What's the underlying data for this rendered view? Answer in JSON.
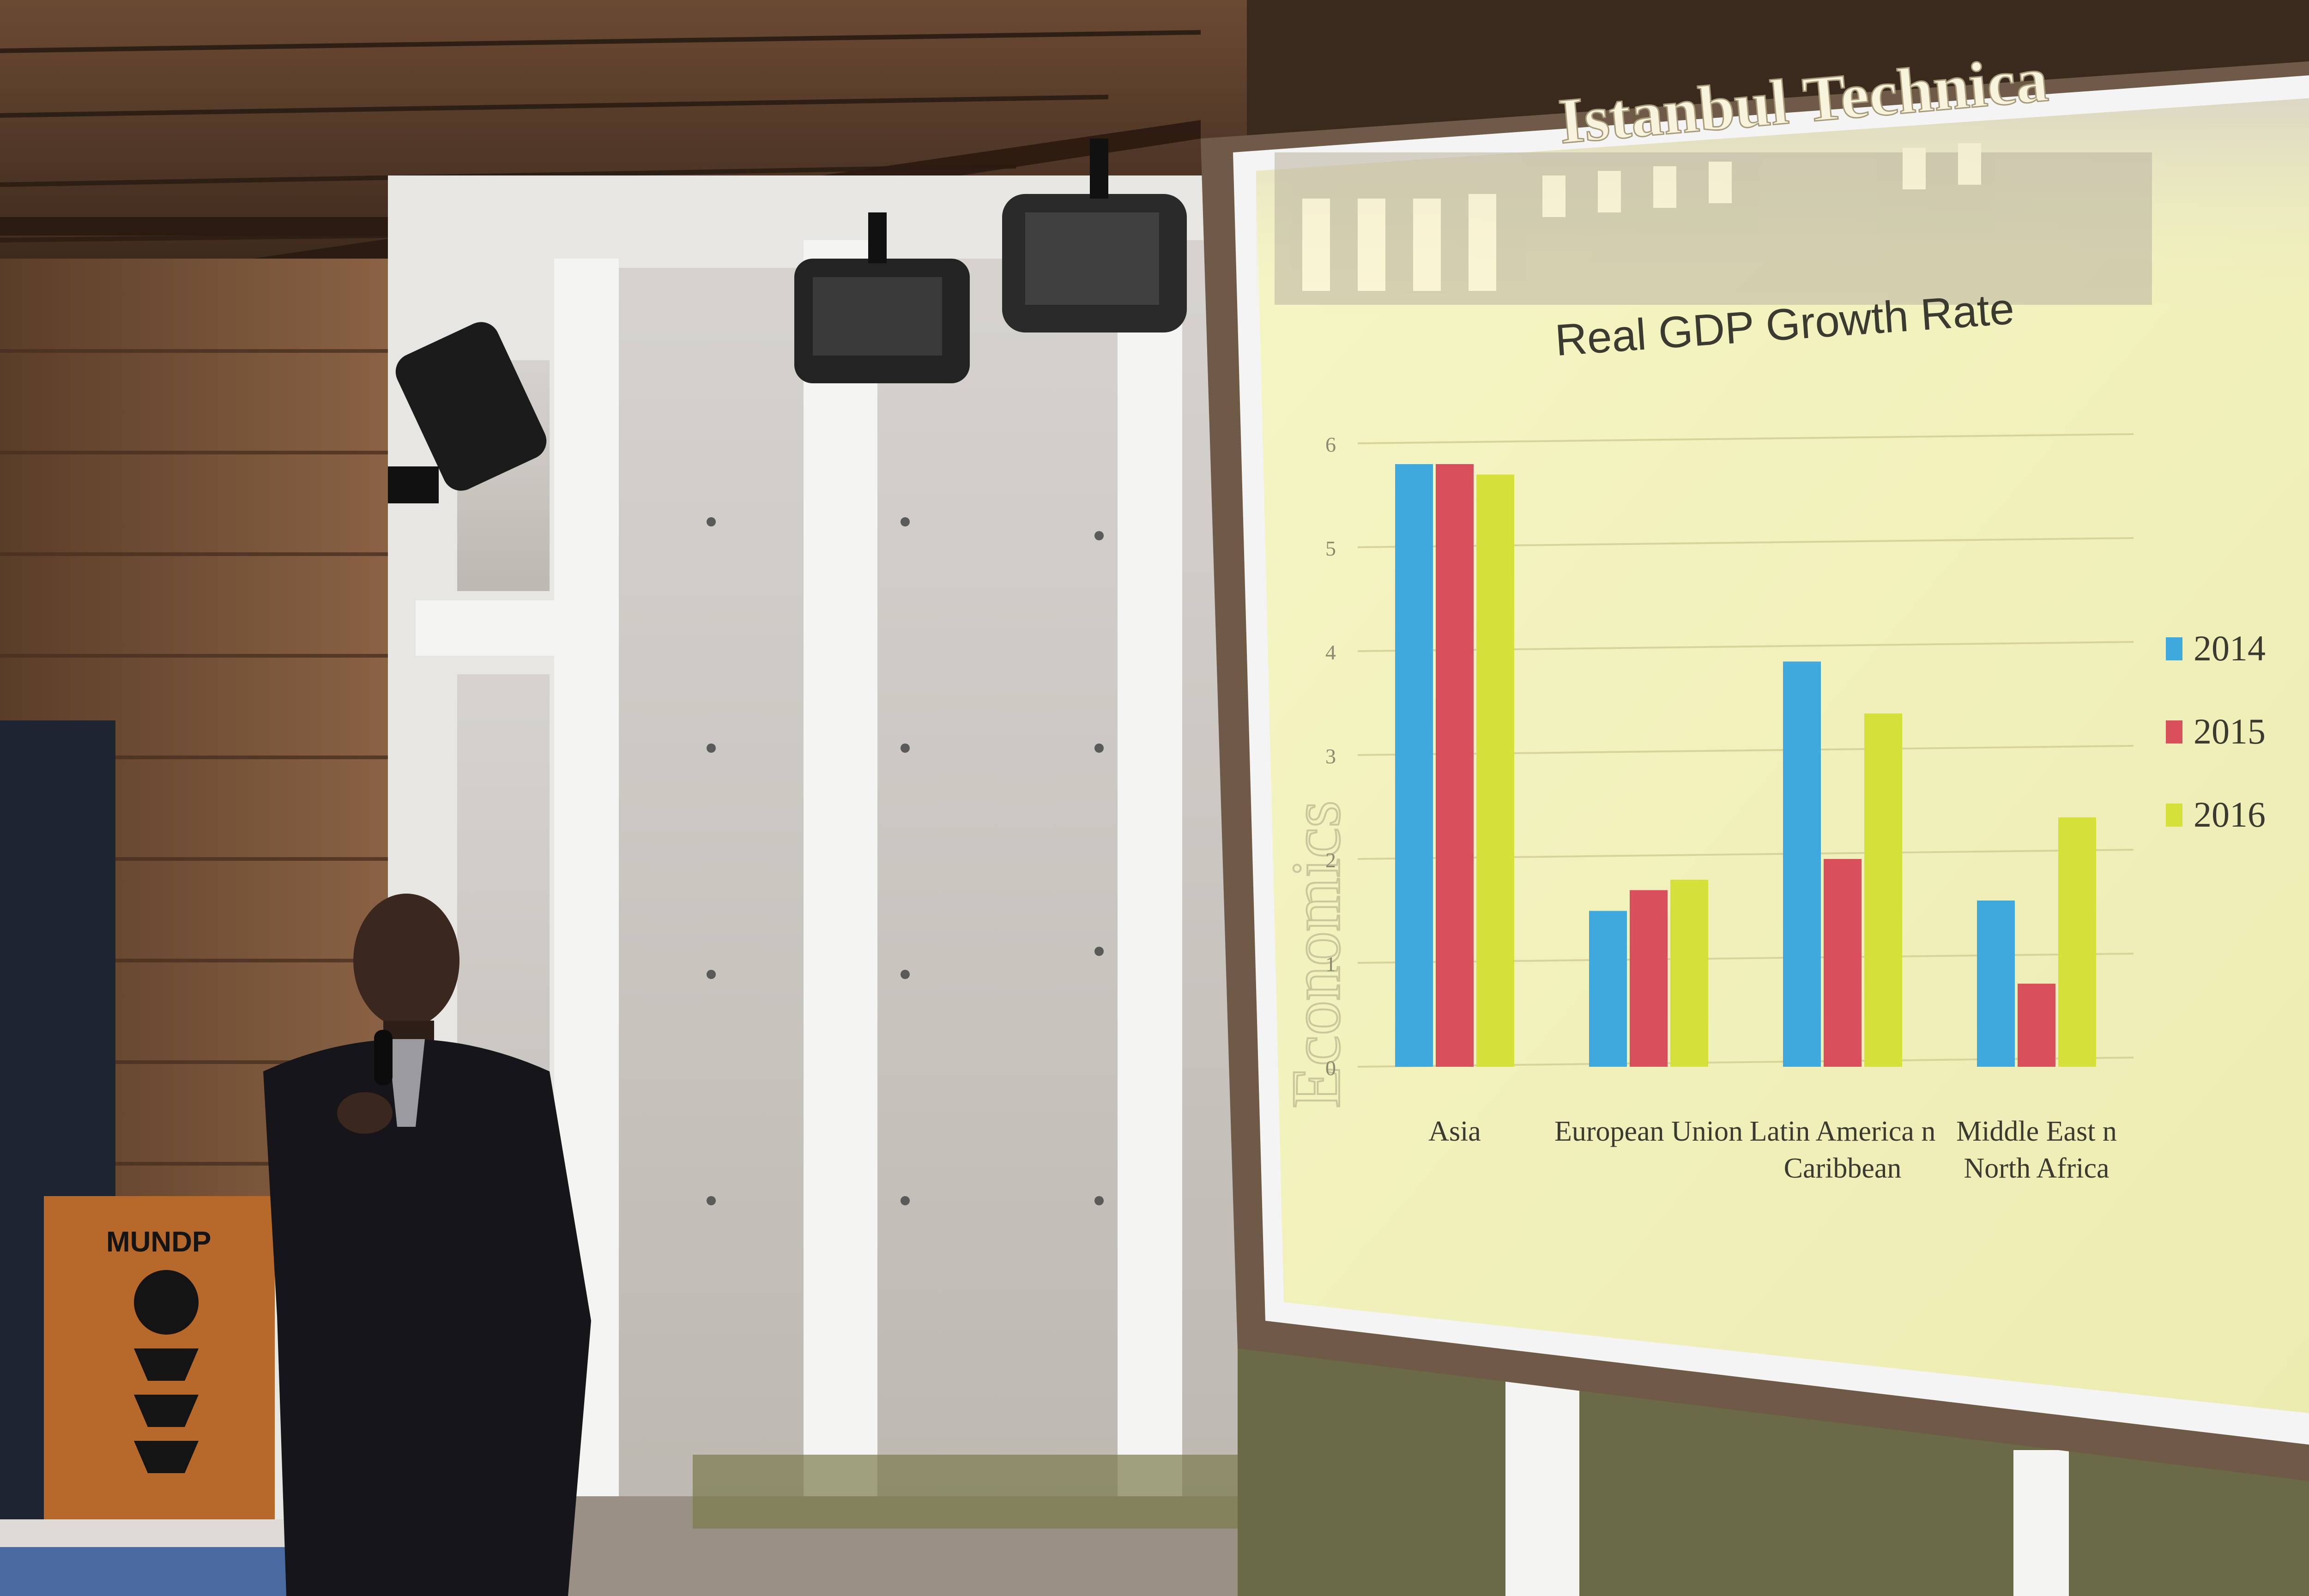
{
  "slide": {
    "header_text": "Istanbul Technica",
    "side_watermark": "Economics",
    "colors": {
      "background": "#f2f2b4",
      "series_2014": "#3fa8dc",
      "series_2015": "#d8505c",
      "series_2016": "#d6e03a"
    }
  },
  "podium": {
    "label": "MUNDP",
    "emblem": "MUNDP logo emblem"
  },
  "chart_data": {
    "type": "bar",
    "title": "Real GDP Growth Rate",
    "categories": [
      [
        "Asia"
      ],
      [
        "European Union"
      ],
      [
        "Latin America n",
        "Caribbean"
      ],
      [
        "Middle East n",
        "North Africa"
      ]
    ],
    "y_ticks": [
      "0",
      "1",
      "2",
      "3",
      "4",
      "5",
      "6"
    ],
    "ylim": [
      0,
      6
    ],
    "grid": true,
    "legend_position": "right",
    "series": [
      {
        "name": "2014",
        "color": "#3fa8dc",
        "values": [
          5.8,
          1.5,
          3.9,
          1.6
        ]
      },
      {
        "name": "2015",
        "color": "#d8505c",
        "values": [
          5.8,
          1.7,
          2.0,
          0.8
        ]
      },
      {
        "name": "2016",
        "color": "#d6e03a",
        "values": [
          5.7,
          1.8,
          3.4,
          2.4
        ]
      }
    ]
  }
}
